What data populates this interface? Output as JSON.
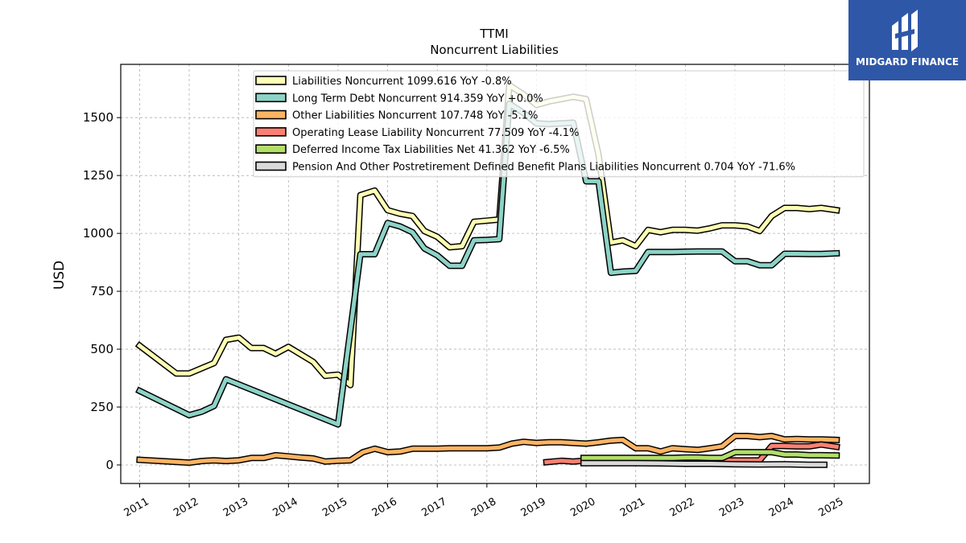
{
  "brand": {
    "name": "MIDGARD FINANCE",
    "color": "#2f57a8"
  },
  "chart_data": {
    "type": "line",
    "title": "TTMI",
    "subtitle": "Noncurrent  Liabilities",
    "xlabel": "",
    "ylabel": "USD",
    "xlim": [
      2010.62,
      2025.71
    ],
    "ylim": [
      -80,
      1730
    ],
    "yticks": [
      0,
      250,
      500,
      750,
      1000,
      1250,
      1500
    ],
    "xticks": [
      2011,
      2012,
      2013,
      2014,
      2015,
      2016,
      2017,
      2018,
      2019,
      2020,
      2021,
      2022,
      2023,
      2024,
      2025
    ],
    "grid": true,
    "legend_position": "top",
    "series": [
      {
        "name": "Liabilities Noncurrent",
        "legend_label": "Liabilities Noncurrent  1099.616 YoY -0.8%",
        "color": "#ffffb3",
        "points": [
          [
            2011.0,
            515
          ],
          [
            2011.74,
            395
          ],
          [
            2012.0,
            395
          ],
          [
            2012.5,
            440
          ],
          [
            2012.74,
            540
          ],
          [
            2013.0,
            550
          ],
          [
            2013.25,
            505
          ],
          [
            2013.5,
            505
          ],
          [
            2013.74,
            480
          ],
          [
            2014.0,
            510
          ],
          [
            2014.5,
            445
          ],
          [
            2014.74,
            385
          ],
          [
            2015.0,
            390
          ],
          [
            2015.25,
            345
          ],
          [
            2015.45,
            1165
          ],
          [
            2015.74,
            1185
          ],
          [
            2016.0,
            1100
          ],
          [
            2016.25,
            1085
          ],
          [
            2016.5,
            1075
          ],
          [
            2016.74,
            1010
          ],
          [
            2017.0,
            985
          ],
          [
            2017.25,
            940
          ],
          [
            2017.5,
            945
          ],
          [
            2017.74,
            1050
          ],
          [
            2018.0,
            1055
          ],
          [
            2018.25,
            1060
          ],
          [
            2018.45,
            1640
          ],
          [
            2018.74,
            1600
          ],
          [
            2019.0,
            1555
          ],
          [
            2019.25,
            1570
          ],
          [
            2019.5,
            1580
          ],
          [
            2019.74,
            1590
          ],
          [
            2020.0,
            1580
          ],
          [
            2020.25,
            1340
          ],
          [
            2020.5,
            960
          ],
          [
            2020.74,
            970
          ],
          [
            2021.0,
            945
          ],
          [
            2021.25,
            1015
          ],
          [
            2021.5,
            1005
          ],
          [
            2021.74,
            1015
          ],
          [
            2022.0,
            1015
          ],
          [
            2022.25,
            1012
          ],
          [
            2022.5,
            1022
          ],
          [
            2022.74,
            1035
          ],
          [
            2023.0,
            1035
          ],
          [
            2023.25,
            1030
          ],
          [
            2023.5,
            1010
          ],
          [
            2023.74,
            1075
          ],
          [
            2024.0,
            1110
          ],
          [
            2024.25,
            1110
          ],
          [
            2024.5,
            1105
          ],
          [
            2024.74,
            1110
          ],
          [
            2025.05,
            1100
          ]
        ]
      },
      {
        "name": "Long Term Debt Noncurrent",
        "legend_label": "Long Term Debt Noncurrent  914.359 YoY +0.0%",
        "color": "#8dd3c7",
        "points": [
          [
            2011.0,
            320
          ],
          [
            2012.0,
            215
          ],
          [
            2012.25,
            230
          ],
          [
            2012.5,
            255
          ],
          [
            2012.74,
            370
          ],
          [
            2015.0,
            175
          ],
          [
            2015.45,
            910
          ],
          [
            2015.74,
            910
          ],
          [
            2016.0,
            1045
          ],
          [
            2016.25,
            1030
          ],
          [
            2016.5,
            1005
          ],
          [
            2016.74,
            935
          ],
          [
            2017.0,
            905
          ],
          [
            2017.25,
            860
          ],
          [
            2017.5,
            860
          ],
          [
            2017.74,
            970
          ],
          [
            2018.0,
            972
          ],
          [
            2018.25,
            975
          ],
          [
            2018.45,
            1560
          ],
          [
            2018.74,
            1520
          ],
          [
            2019.0,
            1475
          ],
          [
            2019.25,
            1472
          ],
          [
            2019.5,
            1475
          ],
          [
            2019.74,
            1478
          ],
          [
            2020.0,
            1225
          ],
          [
            2020.25,
            1225
          ],
          [
            2020.5,
            830
          ],
          [
            2020.74,
            835
          ],
          [
            2021.0,
            838
          ],
          [
            2021.25,
            920
          ],
          [
            2021.5,
            920
          ],
          [
            2021.74,
            920
          ],
          [
            2022.0,
            921
          ],
          [
            2022.25,
            922
          ],
          [
            2022.5,
            922
          ],
          [
            2022.74,
            922
          ],
          [
            2023.0,
            880
          ],
          [
            2023.25,
            880
          ],
          [
            2023.5,
            862
          ],
          [
            2023.74,
            862
          ],
          [
            2024.0,
            912
          ],
          [
            2024.25,
            912
          ],
          [
            2024.5,
            911
          ],
          [
            2024.74,
            911
          ],
          [
            2025.05,
            914
          ]
        ]
      },
      {
        "name": "Other Liabilities Noncurrent",
        "legend_label": "Other Liabilities Noncurrent  107.748 YoY -5.1%",
        "color": "#fdb462",
        "points": [
          [
            2011.0,
            22
          ],
          [
            2012.0,
            10
          ],
          [
            2012.25,
            17
          ],
          [
            2012.5,
            20
          ],
          [
            2012.74,
            17
          ],
          [
            2013.0,
            20
          ],
          [
            2013.25,
            30
          ],
          [
            2013.5,
            30
          ],
          [
            2013.74,
            42
          ],
          [
            2014.0,
            37
          ],
          [
            2014.25,
            32
          ],
          [
            2014.5,
            28
          ],
          [
            2014.74,
            15
          ],
          [
            2015.0,
            18
          ],
          [
            2015.25,
            20
          ],
          [
            2015.5,
            55
          ],
          [
            2015.74,
            70
          ],
          [
            2016.0,
            55
          ],
          [
            2016.25,
            58
          ],
          [
            2016.5,
            70
          ],
          [
            2016.74,
            70
          ],
          [
            2017.0,
            70
          ],
          [
            2017.25,
            72
          ],
          [
            2017.5,
            72
          ],
          [
            2017.74,
            72
          ],
          [
            2018.0,
            72
          ],
          [
            2018.25,
            75
          ],
          [
            2018.5,
            92
          ],
          [
            2018.74,
            100
          ],
          [
            2019.0,
            95
          ],
          [
            2019.25,
            98
          ],
          [
            2019.5,
            98
          ],
          [
            2019.74,
            95
          ],
          [
            2020.0,
            92
          ],
          [
            2020.25,
            98
          ],
          [
            2020.5,
            105
          ],
          [
            2020.74,
            108
          ],
          [
            2021.0,
            72
          ],
          [
            2021.25,
            72
          ],
          [
            2021.5,
            58
          ],
          [
            2021.74,
            72
          ],
          [
            2022.0,
            68
          ],
          [
            2022.25,
            65
          ],
          [
            2022.5,
            72
          ],
          [
            2022.74,
            80
          ],
          [
            2023.0,
            125
          ],
          [
            2023.25,
            125
          ],
          [
            2023.5,
            120
          ],
          [
            2023.74,
            125
          ],
          [
            2024.0,
            110
          ],
          [
            2024.25,
            112
          ],
          [
            2024.5,
            110
          ],
          [
            2024.74,
            110
          ],
          [
            2025.05,
            108
          ]
        ]
      },
      {
        "name": "Operating Lease Liability Noncurrent",
        "legend_label": "Operating Lease Liability Noncurrent  77.509 YoY -4.1%",
        "color": "#fb8072",
        "points": [
          [
            2019.2,
            12
          ],
          [
            2019.5,
            18
          ],
          [
            2019.74,
            15
          ],
          [
            2019.95,
            18
          ],
          [
            2023.5,
            20
          ],
          [
            2023.74,
            82
          ],
          [
            2024.0,
            82
          ],
          [
            2024.25,
            80
          ],
          [
            2024.5,
            80
          ],
          [
            2024.74,
            88
          ],
          [
            2025.05,
            78
          ]
        ]
      },
      {
        "name": "Deferred Income Tax Liabilities Net",
        "legend_label": "Deferred Income Tax Liabilities Net  41.362 YoY -6.5%",
        "color": "#b3de69",
        "points": [
          [
            2019.95,
            30
          ],
          [
            2021.0,
            30
          ],
          [
            2021.25,
            30
          ],
          [
            2021.5,
            30
          ],
          [
            2021.74,
            30
          ],
          [
            2022.0,
            32
          ],
          [
            2022.25,
            32
          ],
          [
            2022.5,
            30
          ],
          [
            2022.74,
            30
          ],
          [
            2023.0,
            55
          ],
          [
            2023.25,
            55
          ],
          [
            2023.5,
            55
          ],
          [
            2023.74,
            55
          ],
          [
            2024.0,
            45
          ],
          [
            2024.25,
            45
          ],
          [
            2024.5,
            42
          ],
          [
            2024.74,
            42
          ],
          [
            2025.05,
            41
          ]
        ]
      },
      {
        "name": "Pension And Other Postretirement Defined Benefit Plans Liabilities Noncurrent",
        "legend_label": "Pension And Other Postretirement Defined Benefit Plans Liabilities Noncurrent  0.704 YoY -71.6%",
        "color": "#d9d9d9",
        "points": [
          [
            2019.95,
            8
          ],
          [
            2020.5,
            8
          ],
          [
            2021.0,
            8
          ],
          [
            2021.5,
            7
          ],
          [
            2021.74,
            6
          ],
          [
            2022.0,
            5
          ],
          [
            2022.5,
            5
          ],
          [
            2023.0,
            3
          ],
          [
            2023.5,
            2
          ],
          [
            2024.0,
            3
          ],
          [
            2024.5,
            1
          ],
          [
            2024.8,
            1
          ]
        ]
      }
    ]
  }
}
